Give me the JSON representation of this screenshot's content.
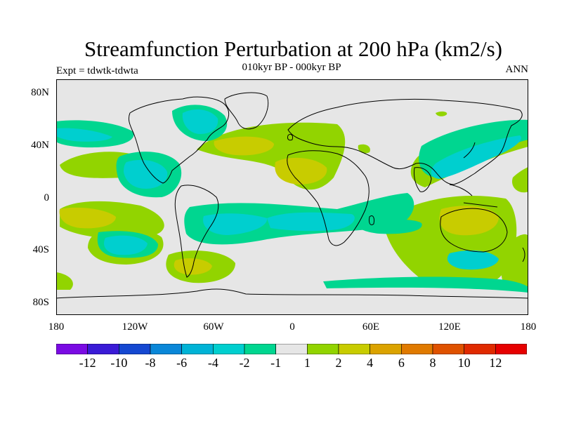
{
  "title": "Streamfunction Perturbation at 200 hPa (km2/s)",
  "subtitle": "010kyr BP - 000kyr BP",
  "left_label": "Expt = tdwtk-tdwta",
  "right_label": "ANN",
  "y_axis_labels": [
    "80N",
    "40N",
    "0",
    "40S",
    "80S"
  ],
  "x_axis_labels": [
    "180",
    "120W",
    "60W",
    "0",
    "60E",
    "120E",
    "180"
  ],
  "colorbar": {
    "labels": [
      "-12",
      "-10",
      "-8",
      "-6",
      "-4",
      "-2",
      "-1",
      "1",
      "2",
      "4",
      "6",
      "8",
      "10",
      "12"
    ],
    "colors": [
      "#7a0be3",
      "#3a1bd6",
      "#1548d1",
      "#0a87d8",
      "#00b3d6",
      "#00cfcf",
      "#00d690",
      "#e6e6e6",
      "#92d400",
      "#c8cc00",
      "#dba300",
      "#e07a00",
      "#df5200",
      "#e02a00",
      "#e60000"
    ]
  },
  "map": {
    "background": "#e6e6e6",
    "coast_color": "#000000"
  }
}
